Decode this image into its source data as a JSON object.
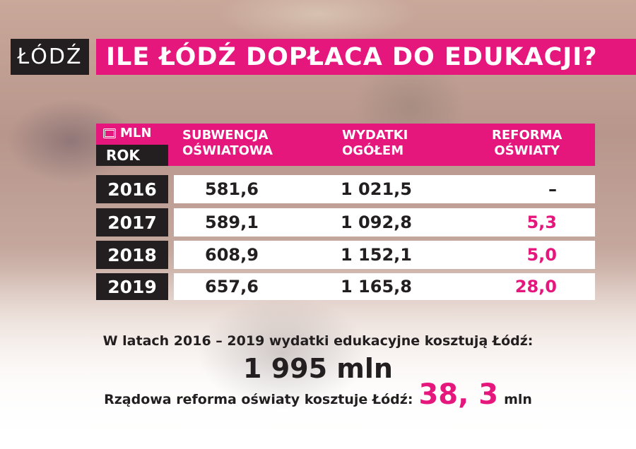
{
  "logo": "ŁÓDŹ",
  "title": "ILE ŁÓDŹ DOPŁACA DO EDUKACJI?",
  "table": {
    "unit_label": "MLN",
    "unit_icon": "money-stack-icon",
    "year_header": "ROK",
    "columns": [
      [
        "SUBWENCJA",
        "OŚWIATOWA"
      ],
      [
        "WYDATKI",
        "OGÓŁEM"
      ],
      [
        "REFORMA",
        "OŚWIATY"
      ]
    ],
    "rows": [
      {
        "year": "2016",
        "subwencja": "581,6",
        "wydatki": "1 021,5",
        "reforma": "–"
      },
      {
        "year": "2017",
        "subwencja": "589,1",
        "wydatki": "1 092,8",
        "reforma": "5,3"
      },
      {
        "year": "2018",
        "subwencja": "608,9",
        "wydatki": "1 152,1",
        "reforma": "5,0"
      },
      {
        "year": "2019",
        "subwencja": "657,6",
        "wydatki": "1 165,8",
        "reforma": "28,0"
      }
    ]
  },
  "summary": {
    "line1": "W latach 2016 – 2019 wydatki edukacyjne kosztują Łódź:",
    "total": "1 995 mln",
    "line3_prefix": "Rządowa reforma oświaty kosztuje Łódź:",
    "reform_total": "38, 3",
    "reform_unit": "mln"
  },
  "colors": {
    "accent": "#e5177d",
    "dark": "#231f20"
  }
}
